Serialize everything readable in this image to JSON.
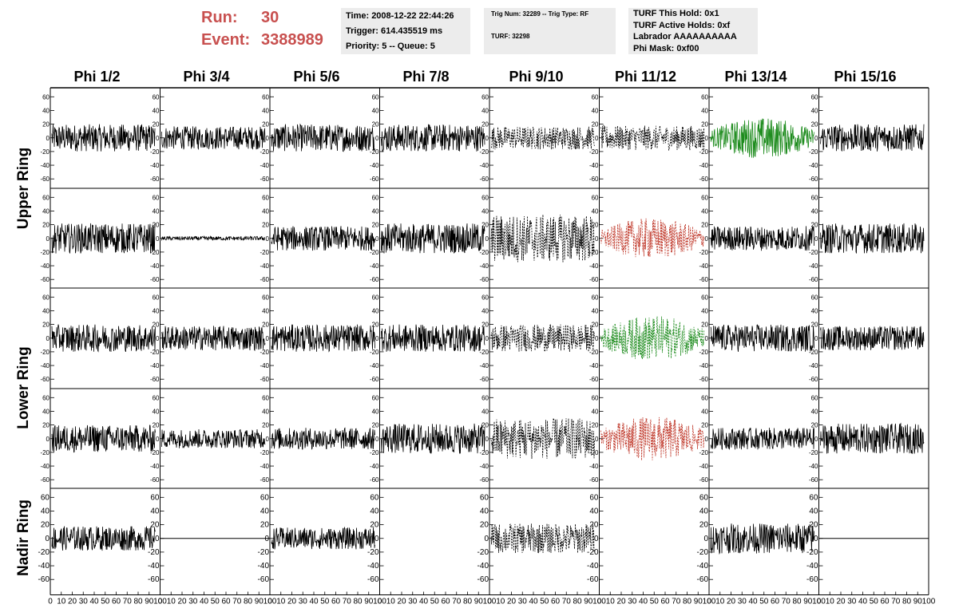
{
  "header": {
    "run_label": "Run:",
    "run_value": "30",
    "event_label": "Event:",
    "event_value": "3388989",
    "accent_color": "#c8504f"
  },
  "time_box": {
    "time": "Time: 2008-12-22 22:44:26",
    "trigger": "Trigger: 614.435519 ms",
    "priority": "Priority: 5 -- Queue: 5"
  },
  "trig_box": {
    "trig_line": "Trig Num: 32289 -- Trig Type: RF",
    "turf_line": "TURF: 32298"
  },
  "turf_box": {
    "this_hold": "TURF This Hold: 0x1",
    "active_holds": "TURF Active Holds: 0xf",
    "labrador": "Labrador AAAAAAAAAA",
    "phi_mask": "Phi Mask: 0xf00"
  },
  "columns": [
    "Phi 1/2",
    "Phi 3/4",
    "Phi 5/6",
    "Phi 7/8",
    "Phi 9/10",
    "Phi 11/12",
    "Phi 13/14",
    "Phi 15/16"
  ],
  "rings": [
    "Upper Ring",
    "Lower Ring",
    "Nadir Ring"
  ],
  "axes": {
    "y_ticks": [
      60,
      40,
      20,
      0,
      -20,
      -40,
      -60
    ],
    "x_ticks": [
      0,
      10,
      20,
      30,
      40,
      50,
      60,
      70,
      80,
      90,
      100
    ],
    "ylim": [
      -65,
      65
    ],
    "xlim": [
      0,
      100
    ]
  },
  "waveform_colors": {
    "black": "#000000",
    "green": "#1e8c1e",
    "red": "#c0392b"
  },
  "panels": [
    {
      "row": 0,
      "col": 0,
      "style": "solid",
      "color": "black",
      "amplitude": 20
    },
    {
      "row": 0,
      "col": 1,
      "style": "solid",
      "color": "black",
      "amplitude": 17
    },
    {
      "row": 0,
      "col": 2,
      "style": "solid",
      "color": "black",
      "amplitude": 20
    },
    {
      "row": 0,
      "col": 3,
      "style": "solid",
      "color": "black",
      "amplitude": 20
    },
    {
      "row": 0,
      "col": 4,
      "style": "dashed",
      "color": "black",
      "amplitude": 17
    },
    {
      "row": 0,
      "col": 5,
      "style": "dashed",
      "color": "black",
      "amplitude": 18
    },
    {
      "row": 0,
      "col": 6,
      "style": "solid",
      "color": "green",
      "amplitude": 30
    },
    {
      "row": 0,
      "col": 7,
      "style": "solid",
      "color": "black",
      "amplitude": 20
    },
    {
      "row": 1,
      "col": 0,
      "style": "solid",
      "color": "black",
      "amplitude": 22
    },
    {
      "row": 1,
      "col": 1,
      "style": "solid",
      "color": "black",
      "amplitude": 3
    },
    {
      "row": 1,
      "col": 2,
      "style": "solid",
      "color": "black",
      "amplitude": 18
    },
    {
      "row": 1,
      "col": 3,
      "style": "solid",
      "color": "black",
      "amplitude": 22
    },
    {
      "row": 1,
      "col": 4,
      "style": "dashed",
      "color": "black",
      "amplitude": 35
    },
    {
      "row": 1,
      "col": 5,
      "style": "dashed",
      "color": "red",
      "amplitude": 30
    },
    {
      "row": 1,
      "col": 6,
      "style": "solid",
      "color": "black",
      "amplitude": 18
    },
    {
      "row": 1,
      "col": 7,
      "style": "solid",
      "color": "black",
      "amplitude": 22
    },
    {
      "row": 2,
      "col": 0,
      "style": "solid",
      "color": "black",
      "amplitude": 20
    },
    {
      "row": 2,
      "col": 1,
      "style": "solid",
      "color": "black",
      "amplitude": 18
    },
    {
      "row": 2,
      "col": 2,
      "style": "solid",
      "color": "black",
      "amplitude": 20
    },
    {
      "row": 2,
      "col": 3,
      "style": "solid",
      "color": "black",
      "amplitude": 20
    },
    {
      "row": 2,
      "col": 4,
      "style": "dashed",
      "color": "black",
      "amplitude": 20
    },
    {
      "row": 2,
      "col": 5,
      "style": "dashed",
      "color": "green",
      "amplitude": 33
    },
    {
      "row": 2,
      "col": 6,
      "style": "solid",
      "color": "black",
      "amplitude": 20
    },
    {
      "row": 2,
      "col": 7,
      "style": "solid",
      "color": "black",
      "amplitude": 18
    },
    {
      "row": 3,
      "col": 0,
      "style": "solid",
      "color": "black",
      "amplitude": 20
    },
    {
      "row": 3,
      "col": 1,
      "style": "solid",
      "color": "black",
      "amplitude": 14
    },
    {
      "row": 3,
      "col": 2,
      "style": "solid",
      "color": "black",
      "amplitude": 16
    },
    {
      "row": 3,
      "col": 3,
      "style": "solid",
      "color": "black",
      "amplitude": 22
    },
    {
      "row": 3,
      "col": 4,
      "style": "dashed",
      "color": "black",
      "amplitude": 30
    },
    {
      "row": 3,
      "col": 5,
      "style": "dashed",
      "color": "red",
      "amplitude": 33
    },
    {
      "row": 3,
      "col": 6,
      "style": "solid",
      "color": "black",
      "amplitude": 16
    },
    {
      "row": 3,
      "col": 7,
      "style": "solid",
      "color": "black",
      "amplitude": 22
    },
    {
      "row": 4,
      "col": 0,
      "style": "solid",
      "color": "black",
      "amplitude": 18
    },
    {
      "row": 4,
      "col": 1,
      "style": "flat",
      "color": "black",
      "amplitude": 0
    },
    {
      "row": 4,
      "col": 2,
      "style": "solid",
      "color": "black",
      "amplitude": 16
    },
    {
      "row": 4,
      "col": 3,
      "style": "none",
      "color": "black",
      "amplitude": 0
    },
    {
      "row": 4,
      "col": 4,
      "style": "dashed",
      "color": "black",
      "amplitude": 22
    },
    {
      "row": 4,
      "col": 5,
      "style": "none",
      "color": "black",
      "amplitude": 0
    },
    {
      "row": 4,
      "col": 6,
      "style": "solid",
      "color": "black",
      "amplitude": 22
    },
    {
      "row": 4,
      "col": 7,
      "style": "flat",
      "color": "black",
      "amplitude": 0
    }
  ]
}
